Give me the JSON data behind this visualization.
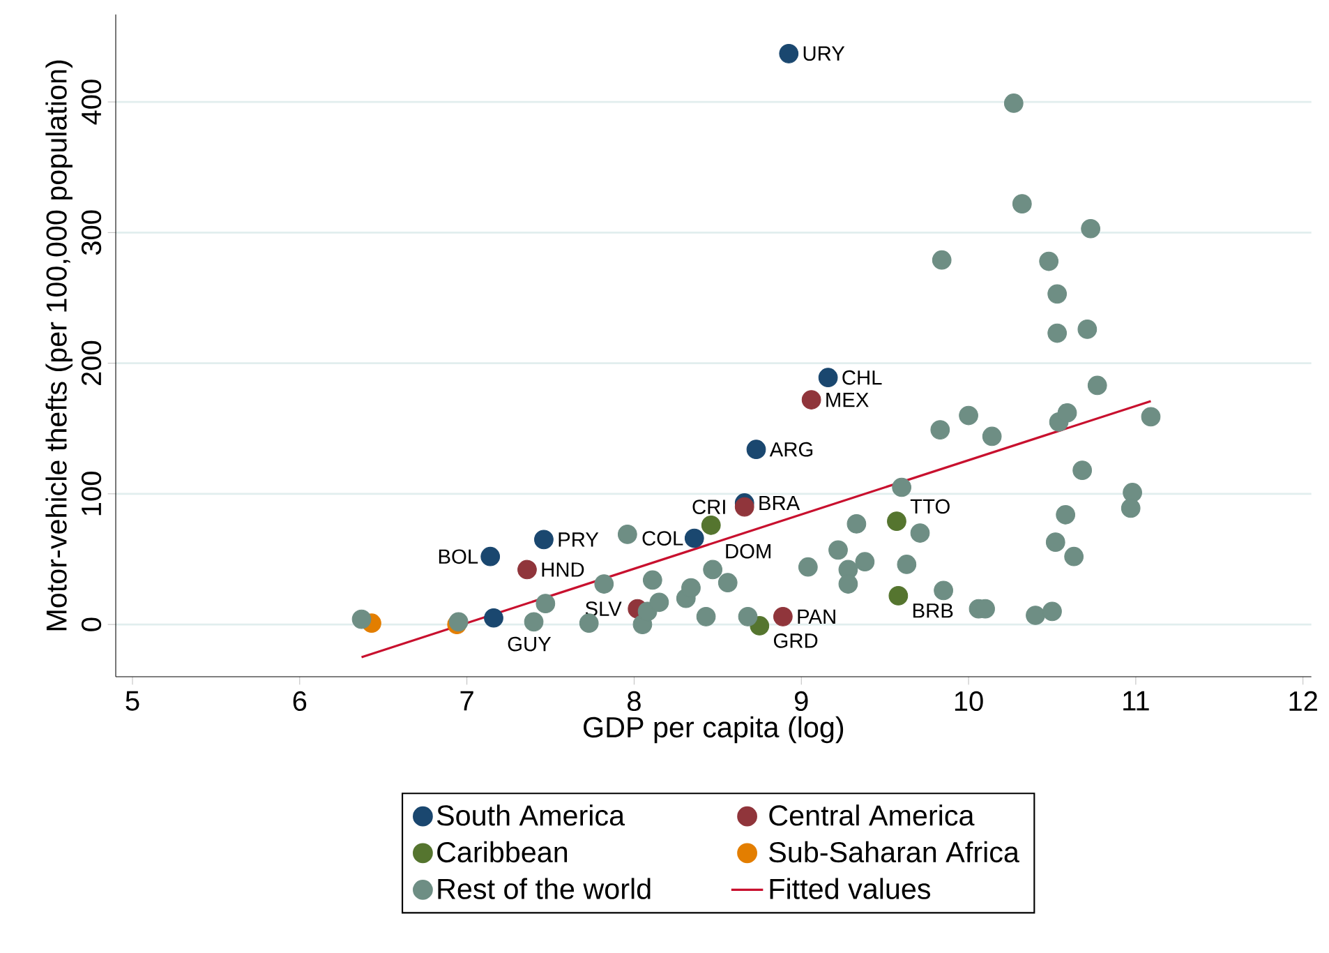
{
  "chart_data": {
    "type": "scatter",
    "xlabel": "GDP per capita (log)",
    "ylabel": "Motor-vehicle thefts (per 100,000 population)",
    "xlim": [
      4.9,
      12.05
    ],
    "ylim": [
      -40,
      467
    ],
    "xticks": [
      5,
      6,
      7,
      8,
      9,
      10,
      11,
      12
    ],
    "yticks": [
      0,
      100,
      200,
      300,
      400
    ],
    "grid": "y",
    "legend": "bottom",
    "marker": "circle",
    "series": [
      {
        "name": "South America",
        "color": "#1a476f",
        "x": [
          8.925,
          9.16,
          8.73,
          8.66,
          8.36,
          7.46,
          7.14,
          7.16
        ],
        "values": [
          437,
          189,
          134,
          93,
          66,
          65,
          52,
          5
        ]
      },
      {
        "name": "Central America",
        "color": "#90353b",
        "x": [
          9.06,
          8.66,
          7.36,
          8.02,
          8.89
        ],
        "values": [
          172,
          90,
          42,
          12,
          6
        ]
      },
      {
        "name": "Caribbean",
        "color": "#55752f",
        "x": [
          8.46,
          9.57,
          9.58,
          8.75
        ],
        "values": [
          76,
          79,
          22,
          -1
        ]
      },
      {
        "name": "Sub-Saharan Africa",
        "color": "#e37e00",
        "x": [
          6.43,
          6.94
        ],
        "values": [
          1,
          0
        ]
      },
      {
        "name": "Rest of the world",
        "color": "#6e8e84",
        "x": [
          6.37,
          6.95,
          7.47,
          7.4,
          7.73,
          7.82,
          7.96,
          8.11,
          8.05,
          8.08,
          8.15,
          8.31,
          8.34,
          8.43,
          8.47,
          8.56,
          8.68,
          9.04,
          9.22,
          9.28,
          9.28,
          9.33,
          9.38,
          9.63,
          9.6,
          9.83,
          10.0,
          10.14,
          9.71,
          9.85,
          10.06,
          10.1,
          10.4,
          10.5,
          10.52,
          10.63,
          10.58,
          10.68,
          10.54,
          10.59,
          11.09,
          10.98,
          10.97,
          10.27,
          10.32,
          10.73,
          9.84,
          10.48,
          10.53,
          10.53,
          10.71,
          10.77
        ],
        "values": [
          4,
          2,
          16,
          2,
          1,
          31,
          69,
          34,
          0,
          10,
          17,
          20,
          28,
          6,
          42,
          32,
          6,
          44,
          57,
          42,
          31,
          77,
          48,
          46,
          105,
          149,
          160,
          144,
          70,
          26,
          12,
          12,
          7,
          10,
          63,
          52,
          84,
          118,
          155,
          162,
          159,
          101,
          89,
          399,
          322,
          303,
          279,
          278,
          253,
          223,
          226,
          183
        ]
      },
      {
        "name": "Fitted values",
        "type": "line",
        "color": "#c8102e",
        "marker": "none",
        "x": [
          6.37,
          11.09
        ],
        "values": [
          -25,
          171
        ]
      }
    ],
    "annotations": [
      {
        "text": "URY",
        "x": 8.925,
        "y": 437
      },
      {
        "text": "CHL",
        "x": 9.16,
        "y": 189
      },
      {
        "text": "ARG",
        "x": 8.73,
        "y": 134
      },
      {
        "text": "BRA",
        "x": 8.66,
        "y": 93
      },
      {
        "text": "COL",
        "x": 8.36,
        "y": 66
      },
      {
        "text": "PRY",
        "x": 7.46,
        "y": 65
      },
      {
        "text": "BOL",
        "x": 7.14,
        "y": 52
      },
      {
        "text": "GUY",
        "x": 7.16,
        "y": 5
      },
      {
        "text": "MEX",
        "x": 9.06,
        "y": 172
      },
      {
        "text": "CRI",
        "x": 8.66,
        "y": 90
      },
      {
        "text": "HND",
        "x": 7.36,
        "y": 42
      },
      {
        "text": "SLV",
        "x": 8.02,
        "y": 12
      },
      {
        "text": "PAN",
        "x": 8.89,
        "y": 6
      },
      {
        "text": "DOM",
        "x": 8.46,
        "y": 76
      },
      {
        "text": "TTO",
        "x": 9.57,
        "y": 79
      },
      {
        "text": "BRB",
        "x": 9.58,
        "y": 22
      },
      {
        "text": "GRD",
        "x": 8.75,
        "y": -1
      }
    ]
  }
}
